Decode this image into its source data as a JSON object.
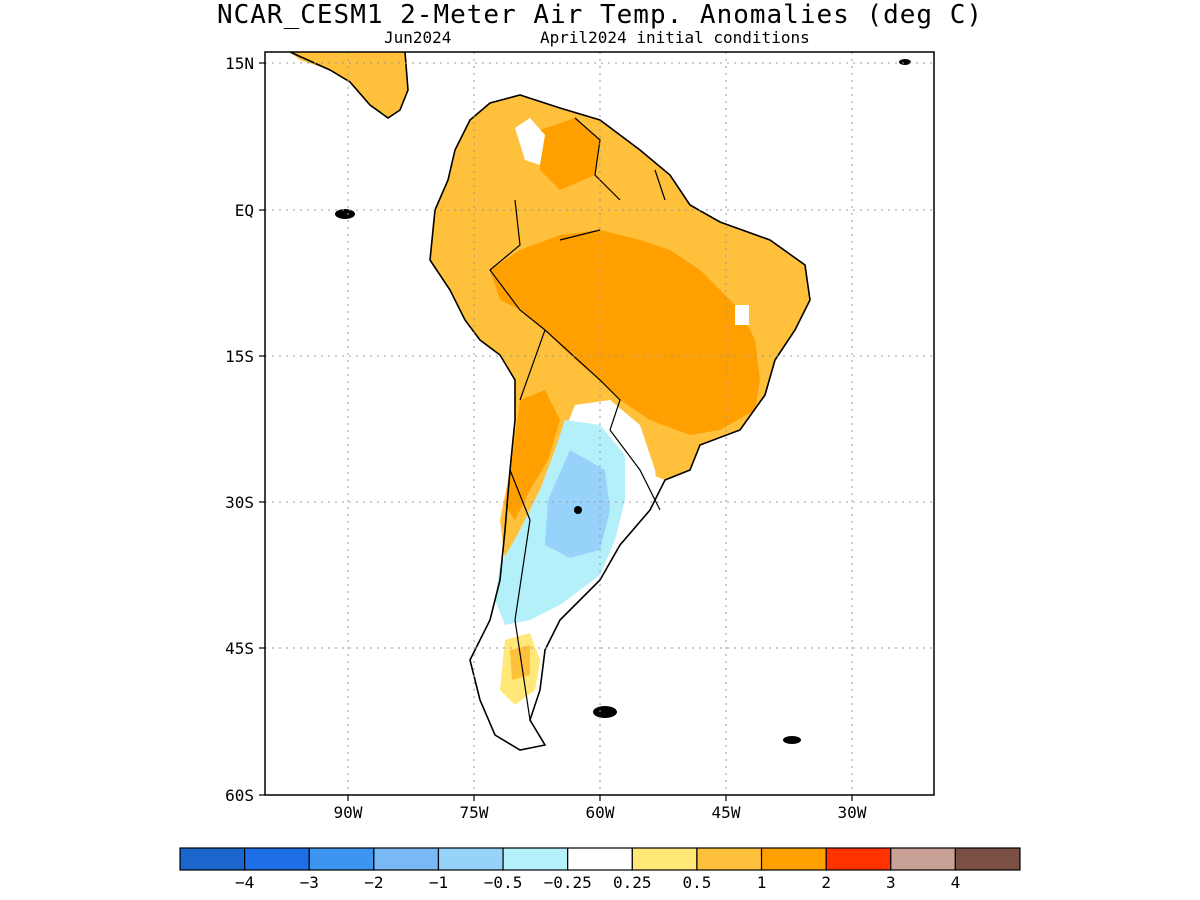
{
  "title": "NCAR_CESM1 2-Meter Air Temp. Anomalies (deg C)",
  "subtitle_left": "Jun2024",
  "subtitle_right": "April2024 initial conditions",
  "map": {
    "lat_labels": [
      "15N",
      "EQ",
      "15S",
      "30S",
      "45S",
      "60S"
    ],
    "lon_labels": [
      "90W",
      "75W",
      "60W",
      "45W",
      "30W"
    ],
    "lat_range": [
      -60,
      15
    ],
    "lon_range": [
      -100,
      -20
    ]
  },
  "colorbar": {
    "colors": [
      "#1a66cc",
      "#1e6ee8",
      "#3c96f0",
      "#78b9f5",
      "#96d2fa",
      "#b4f0fa",
      "#ffffff",
      "#ffe878",
      "#ffc03c",
      "#ffa000",
      "#ff3200",
      "#c8a096",
      "#7a5045"
    ],
    "labels": [
      "-4",
      "-3",
      "-2",
      "-1",
      "-0.5",
      "-0.25",
      "0.25",
      "0.5",
      "1",
      "2",
      "3",
      "4"
    ]
  }
}
